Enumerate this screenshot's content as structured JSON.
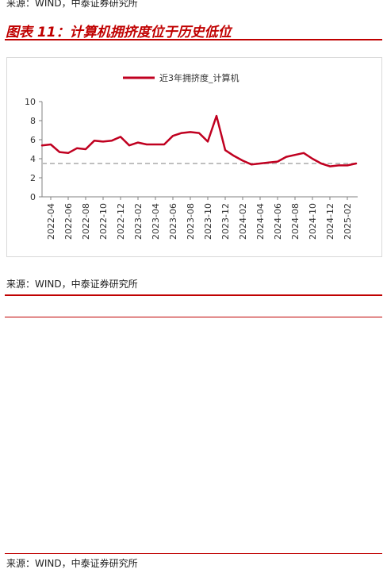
{
  "header": {
    "source_top": "来源：WIND，中泰证券研究所",
    "figure_title": "图表 11：计算机拥挤度位于历史低位"
  },
  "footer": {
    "source_1": "来源：WIND，中泰证券研究所",
    "source_2": "来源：WIND，中泰证券研究所"
  },
  "colors": {
    "series": "#c00020",
    "reference_line": "#bfbfbf",
    "title": "#c00000"
  },
  "chart_data": {
    "type": "line",
    "ylim": [
      0,
      10
    ],
    "yticks": [
      0,
      2,
      4,
      6,
      8,
      10
    ],
    "xtick_labels": [
      "2022-04",
      "2022-06",
      "2022-08",
      "2022-10",
      "2022-12",
      "2023-02",
      "2023-04",
      "2023-06",
      "2023-08",
      "2023-10",
      "2023-12",
      "2024-02",
      "2024-04",
      "2024-06",
      "2024-08",
      "2024-10",
      "2024-12",
      "2025-02"
    ],
    "grid": false,
    "legend_position": "top",
    "series": [
      {
        "name": "近3年拥挤度_计算机",
        "x": [
          "2022-03",
          "2022-04",
          "2022-05",
          "2022-06",
          "2022-07",
          "2022-08",
          "2022-09",
          "2022-10",
          "2022-11",
          "2022-12",
          "2023-01",
          "2023-02",
          "2023-03",
          "2023-04",
          "2023-05",
          "2023-06",
          "2023-07",
          "2023-08",
          "2023-09",
          "2023-10",
          "2023-11",
          "2023-12",
          "2024-01",
          "2024-02",
          "2024-03",
          "2024-04",
          "2024-05",
          "2024-06",
          "2024-07",
          "2024-08",
          "2024-09",
          "2024-10",
          "2024-11",
          "2024-12",
          "2025-01",
          "2025-02",
          "2025-03"
        ],
        "values": [
          5.4,
          5.5,
          4.7,
          4.6,
          5.1,
          5.0,
          5.9,
          5.8,
          5.9,
          6.3,
          5.4,
          5.7,
          5.5,
          5.5,
          5.5,
          6.4,
          6.7,
          6.8,
          6.7,
          5.8,
          8.5,
          4.9,
          4.3,
          3.8,
          3.4,
          3.5,
          3.6,
          3.7,
          4.2,
          4.4,
          4.6,
          4.0,
          3.5,
          3.2,
          3.3,
          3.3,
          3.5
        ]
      }
    ],
    "reference_line": {
      "value": 3.5,
      "style": "dashed"
    }
  }
}
